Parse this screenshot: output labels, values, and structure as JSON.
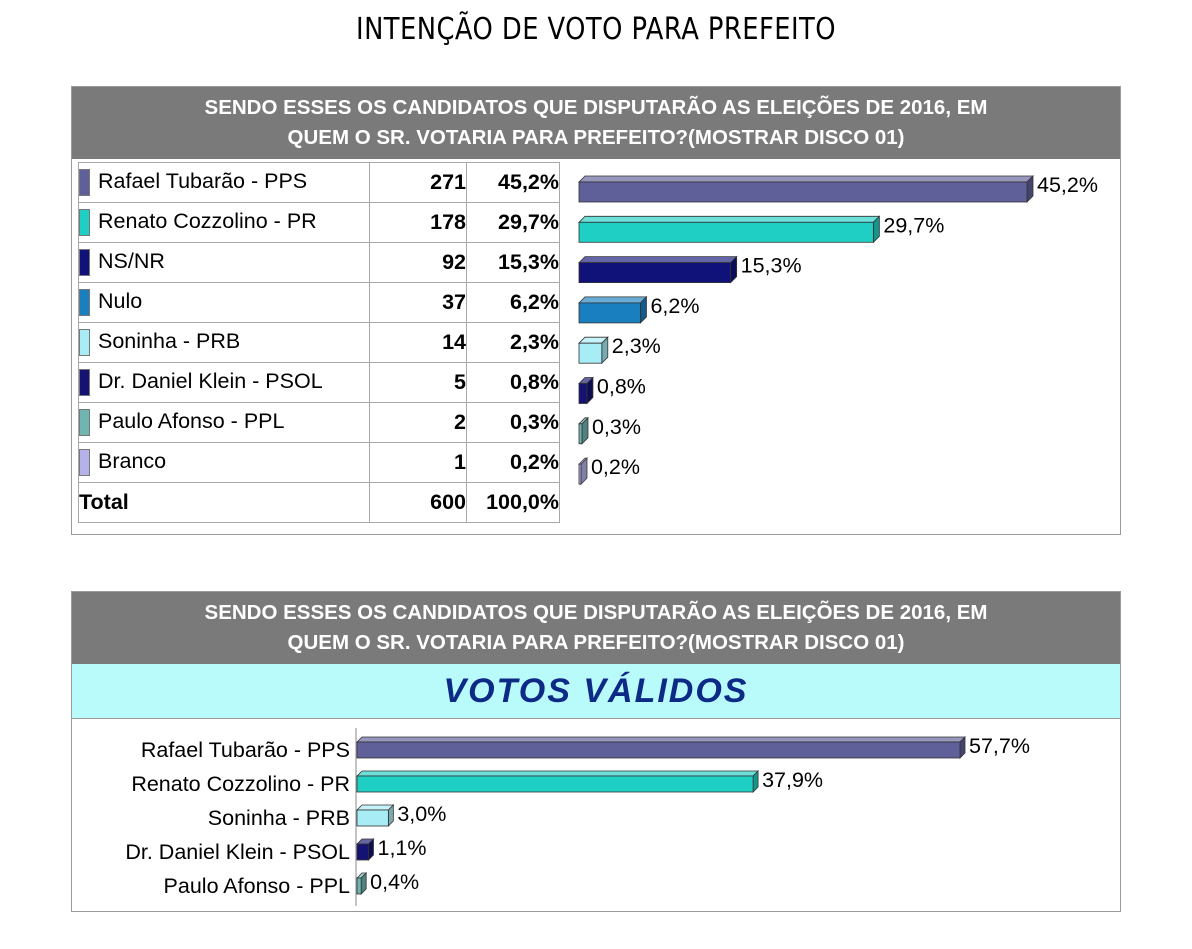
{
  "title": "INTENÇÃO DE VOTO PARA PREFEITO",
  "question": "SENDO ESSES OS CANDIDATOS QUE DISPUTARÃO AS ELEIÇÕES DE 2016, EM\nQUEM O SR. VOTARIA PARA PREFEITO?(MOSTRAR DISCO 01)",
  "valid_label": "VOTOS VÁLIDOS",
  "table": {
    "rows": [
      {
        "name": "Rafael Tubarão - PPS",
        "count": "271",
        "pct": "45,2%",
        "color": "#5f5f9a"
      },
      {
        "name": "Renato Cozzolino - PR",
        "count": "178",
        "pct": "29,7%",
        "color": "#1fcfc4"
      },
      {
        "name": "NS/NR",
        "count": "92",
        "pct": "15,3%",
        "color": "#10127a"
      },
      {
        "name": "Nulo",
        "count": "37",
        "pct": "6,2%",
        "color": "#1a7fbf"
      },
      {
        "name": "Soninha - PRB",
        "count": "14",
        "pct": "2,3%",
        "color": "#a8ecf5"
      },
      {
        "name": "Dr. Daniel Klein - PSOL",
        "count": "5",
        "pct": "0,8%",
        "color": "#141272"
      },
      {
        "name": "Paulo Afonso - PPL",
        "count": "2",
        "pct": "0,3%",
        "color": "#6fb5b0"
      },
      {
        "name": "Branco",
        "count": "1",
        "pct": "0,2%",
        "color": "#b5b2ea"
      }
    ],
    "total": {
      "label": "Total",
      "count": "600",
      "pct": "100,0%"
    }
  },
  "chart_data": [
    {
      "type": "bar",
      "orientation": "horizontal",
      "categories": [
        "Rafael Tubarão - PPS",
        "Renato Cozzolino - PR",
        "NS/NR",
        "Nulo",
        "Soninha - PRB",
        "Dr. Daniel Klein - PSOL",
        "Paulo Afonso - PPL",
        "Branco"
      ],
      "values": [
        45.2,
        29.7,
        15.3,
        6.2,
        2.3,
        0.8,
        0.3,
        0.2
      ],
      "labels": [
        "45,2%",
        "29,7%",
        "15,3%",
        "6,2%",
        "2,3%",
        "0,8%",
        "0,3%",
        "0,2%"
      ],
      "colors": [
        "#5f5f9a",
        "#1fcfc4",
        "#10127a",
        "#1a7fbf",
        "#a8ecf5",
        "#141272",
        "#6fb5b0",
        "#b5b2ea"
      ],
      "xlim": [
        0,
        45.2
      ]
    },
    {
      "type": "bar",
      "orientation": "horizontal",
      "title": "VOTOS VÁLIDOS",
      "categories": [
        "Rafael Tubarão - PPS",
        "Renato Cozzolino - PR",
        "Soninha - PRB",
        "Dr. Daniel Klein - PSOL",
        "Paulo Afonso - PPL"
      ],
      "values": [
        57.7,
        37.9,
        3.0,
        1.1,
        0.4
      ],
      "labels": [
        "57,7%",
        "37,9%",
        "3,0%",
        "1,1%",
        "0,4%"
      ],
      "colors": [
        "#5f5f9a",
        "#1fcfc4",
        "#a8ecf5",
        "#141272",
        "#6fb5b0"
      ],
      "xlim": [
        0,
        57.7
      ]
    }
  ]
}
